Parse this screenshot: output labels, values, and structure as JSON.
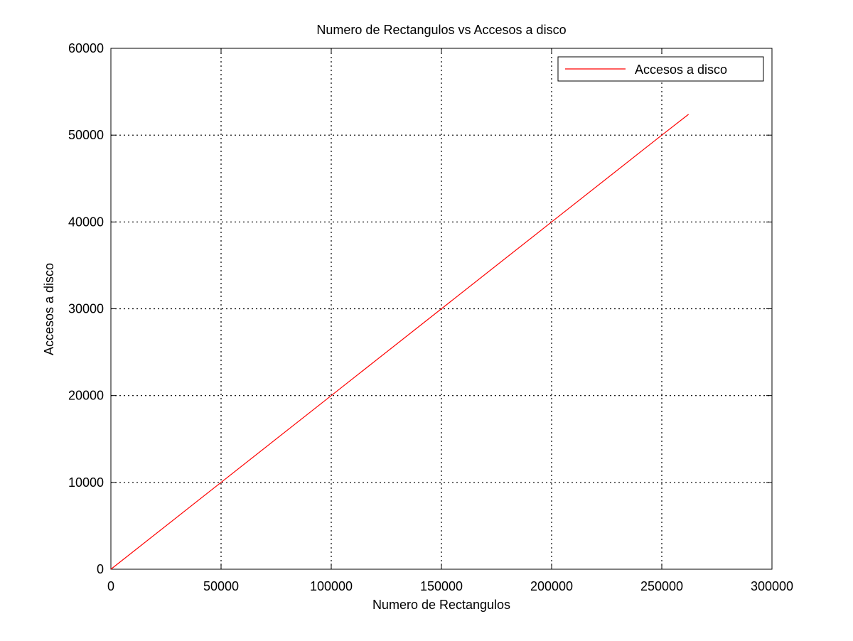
{
  "chart_data": {
    "type": "line",
    "title": "Numero de Rectangulos vs Accesos a disco",
    "xlabel": "Numero de Rectangulos",
    "ylabel": "Accesos a disco",
    "xlim": [
      0,
      300000
    ],
    "ylim": [
      0,
      60000
    ],
    "xticks": [
      0,
      50000,
      100000,
      150000,
      200000,
      250000,
      300000
    ],
    "yticks": [
      0,
      10000,
      20000,
      30000,
      40000,
      50000,
      60000
    ],
    "grid": true,
    "legend_position": "top-right",
    "series": [
      {
        "name": "Accesos a disco",
        "color": "#ff0000",
        "x": [
          0,
          50000,
          100000,
          150000,
          200000,
          250000,
          262144
        ],
        "y": [
          0,
          10000,
          20000,
          30000,
          40000,
          50000,
          52400
        ]
      }
    ]
  }
}
